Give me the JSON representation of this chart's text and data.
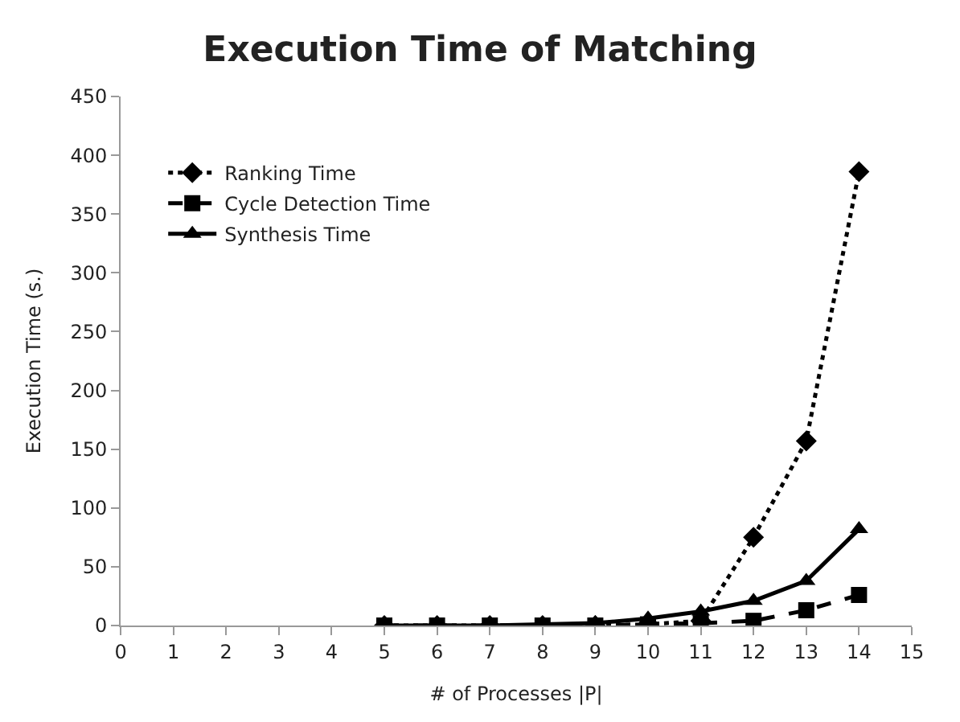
{
  "chart_data": {
    "type": "line",
    "title": "Execution Time of Matching",
    "xlabel": "# of Processes |P|",
    "ylabel": "Execution Time (s.)",
    "x": [
      5,
      6,
      7,
      8,
      9,
      10,
      11,
      12,
      13,
      14
    ],
    "series": [
      {
        "name": "Ranking Time",
        "color": "#000000",
        "marker": "diamond",
        "line_style": "dotted",
        "values": [
          0,
          0,
          0,
          0,
          0,
          1,
          4,
          75,
          157,
          386
        ]
      },
      {
        "name": "Cycle Detection Time",
        "color": "#000000",
        "marker": "square",
        "line_style": "dashed",
        "values": [
          0,
          0,
          0,
          0,
          0,
          1,
          2,
          4,
          13,
          26
        ]
      },
      {
        "name": "Synthesis Time",
        "color": "#000000",
        "marker": "triangle",
        "line_style": "solid",
        "values": [
          0,
          0,
          0,
          1,
          2,
          6,
          12,
          21,
          38,
          82
        ]
      }
    ],
    "xlim": [
      0,
      15
    ],
    "xticks": [
      0,
      1,
      2,
      3,
      4,
      5,
      6,
      7,
      8,
      9,
      10,
      11,
      12,
      13,
      14,
      15
    ],
    "ylim": [
      0,
      450
    ],
    "yticks": [
      0,
      50,
      100,
      150,
      200,
      250,
      300,
      350,
      400,
      450
    ],
    "legend": "top left"
  }
}
